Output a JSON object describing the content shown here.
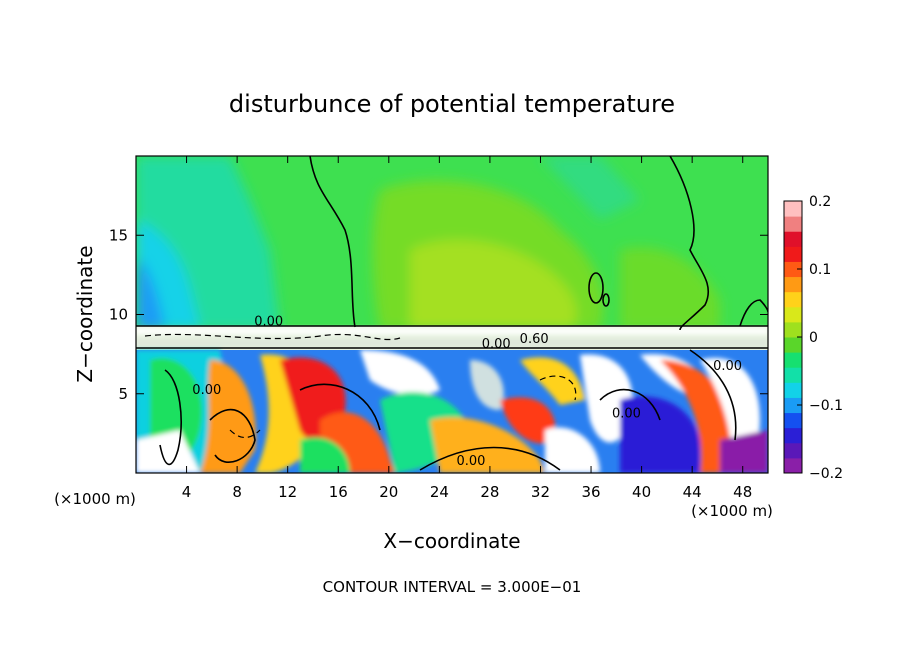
{
  "chart_data": {
    "type": "heatmap",
    "title": "disturbunce of potential temperature",
    "xlabel": "X−coordinate",
    "ylabel": "Z−coordinate",
    "x_unit_label": "(×1000 m)",
    "xlim": [
      0,
      50
    ],
    "ylim": [
      0,
      20
    ],
    "xticks": [
      4,
      8,
      12,
      16,
      20,
      24,
      28,
      32,
      36,
      40,
      44,
      48
    ],
    "yticks": [
      5,
      10,
      15
    ],
    "colorbar": {
      "range": [
        -0.2,
        0.2
      ],
      "tick_labels": [
        "0.2",
        "0.1",
        "0",
        "−0.1",
        "−0.2"
      ],
      "tick_values": [
        0.2,
        0.1,
        0,
        -0.1,
        -0.2
      ],
      "colors": [
        "#8a1fa8",
        "#5a18b8",
        "#2b1fd6",
        "#1450f0",
        "#1a9cf5",
        "#12d2e8",
        "#12e0a8",
        "#16e070",
        "#5ad62a",
        "#9fe01e",
        "#d9e81a",
        "#ffd21a",
        "#ff9a14",
        "#ff5a14",
        "#f01a1a",
        "#e0102a",
        "#f08080",
        "#ffc0c0"
      ]
    },
    "footer": "CONTOUR INTERVAL = 3.000E−01",
    "contour_labels": [
      {
        "text": "0.00",
        "x": 10.5,
        "z": 9.3
      },
      {
        "text": "0.00",
        "x": 28.5,
        "z": 7.9
      },
      {
        "text": "0.60",
        "x": 31.5,
        "z": 8.2
      },
      {
        "text": "0.00",
        "x": 26.5,
        "z": 0.5
      },
      {
        "text": "0.00",
        "x": 5.6,
        "z": 5.0
      },
      {
        "text": "0.00",
        "x": 38.8,
        "z": 3.5
      },
      {
        "text": "0.00",
        "x": 46.8,
        "z": 6.5
      }
    ],
    "fields": {
      "upper_layer": {
        "z_range": [
          9.3,
          20
        ],
        "dominant_value_range": [
          -0.08,
          0.04
        ],
        "description_level": "green-cyan"
      },
      "lower_layer": {
        "z_range": [
          0,
          8
        ],
        "dominant_value_range": [
          -0.2,
          0.2
        ],
        "description_level": "turbulent"
      }
    }
  }
}
